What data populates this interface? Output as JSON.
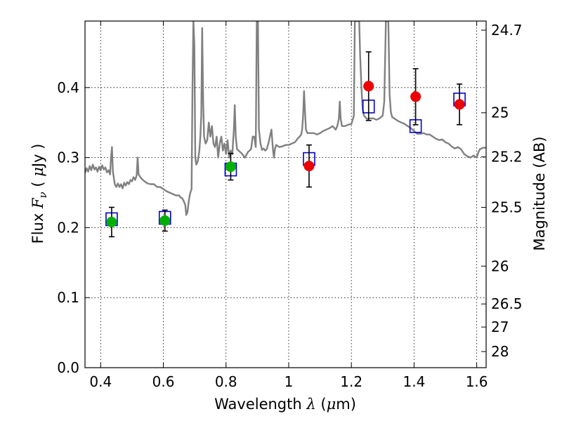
{
  "chart_data": {
    "type": "scatter",
    "xlabel": "Wavelength",
    "xlabel_symbol": "λ",
    "xlabel_unit_open": "(",
    "xlabel_unit_mu": "μ",
    "xlabel_unit_rest": "m)",
    "ylabel": "Flux",
    "ylabel_symbol": "F",
    "ylabel_subscript": "ν",
    "ylabel_unit_open": "(",
    "ylabel_unit_mu": "μ",
    "ylabel_unit_rest": "Jy )",
    "y2label": "Magnitude (AB)",
    "xlim": [
      0.35,
      1.63
    ],
    "ylim": [
      0.0,
      0.495
    ],
    "grid": true,
    "x_ticks": [
      {
        "value": 0.4,
        "label": "0.4"
      },
      {
        "value": 0.6,
        "label": "0.6"
      },
      {
        "value": 0.8,
        "label": "0.8"
      },
      {
        "value": 1.0,
        "label": "1"
      },
      {
        "value": 1.2,
        "label": "1.2"
      },
      {
        "value": 1.4,
        "label": "1.4"
      },
      {
        "value": 1.6,
        "label": "1.6"
      }
    ],
    "y_ticks": [
      {
        "value": 0.0,
        "label": "0.0"
      },
      {
        "value": 0.1,
        "label": "0.1"
      },
      {
        "value": 0.2,
        "label": "0.2"
      },
      {
        "value": 0.3,
        "label": "0.3"
      },
      {
        "value": 0.4,
        "label": "0.4"
      }
    ],
    "y2_ticks": [
      {
        "flux": 0.482,
        "label": "24.7"
      },
      {
        "flux": 0.364,
        "label": "25"
      },
      {
        "flux": 0.301,
        "label": "25.2"
      },
      {
        "flux": 0.229,
        "label": "25.5"
      },
      {
        "flux": 0.145,
        "label": "26"
      },
      {
        "flux": 0.091,
        "label": "26.5"
      },
      {
        "flux": 0.058,
        "label": "27"
      },
      {
        "flux": 0.023,
        "label": "28"
      }
    ],
    "series": [
      {
        "marker": "square-open",
        "color": "#0000cc",
        "points": [
          {
            "x": 0.435,
            "y": 0.212
          },
          {
            "x": 0.605,
            "y": 0.214
          },
          {
            "x": 0.815,
            "y": 0.283
          },
          {
            "x": 1.065,
            "y": 0.298
          },
          {
            "x": 1.255,
            "y": 0.373
          },
          {
            "x": 1.405,
            "y": 0.345
          },
          {
            "x": 1.545,
            "y": 0.383
          }
        ]
      },
      {
        "marker": "circle",
        "color": "#00b000",
        "points": [
          {
            "x": 0.435,
            "y": 0.208,
            "err": 0.021
          },
          {
            "x": 0.605,
            "y": 0.21,
            "err": 0.015
          },
          {
            "x": 0.815,
            "y": 0.287,
            "err": 0.019
          }
        ]
      },
      {
        "marker": "circle",
        "color": "#ee0000",
        "points": [
          {
            "x": 1.065,
            "y": 0.288,
            "err": 0.03
          },
          {
            "x": 1.255,
            "y": 0.402,
            "err": 0.049
          },
          {
            "x": 1.405,
            "y": 0.387,
            "err": 0.04
          },
          {
            "x": 1.545,
            "y": 0.376,
            "err": 0.029
          }
        ]
      },
      {
        "type": "line",
        "color": "#808080",
        "points": [
          [
            0.35,
            0.278
          ],
          [
            0.355,
            0.285
          ],
          [
            0.36,
            0.28
          ],
          [
            0.365,
            0.288
          ],
          [
            0.37,
            0.282
          ],
          [
            0.375,
            0.29
          ],
          [
            0.38,
            0.283
          ],
          [
            0.385,
            0.286
          ],
          [
            0.39,
            0.28
          ],
          [
            0.395,
            0.287
          ],
          [
            0.4,
            0.282
          ],
          [
            0.405,
            0.289
          ],
          [
            0.41,
            0.283
          ],
          [
            0.415,
            0.286
          ],
          [
            0.42,
            0.279
          ],
          [
            0.425,
            0.282
          ],
          [
            0.43,
            0.276
          ],
          [
            0.433,
            0.3
          ],
          [
            0.436,
            0.315
          ],
          [
            0.439,
            0.28
          ],
          [
            0.445,
            0.262
          ],
          [
            0.45,
            0.258
          ],
          [
            0.455,
            0.263
          ],
          [
            0.46,
            0.258
          ],
          [
            0.465,
            0.262
          ],
          [
            0.47,
            0.256
          ],
          [
            0.475,
            0.264
          ],
          [
            0.48,
            0.26
          ],
          [
            0.485,
            0.265
          ],
          [
            0.49,
            0.262
          ],
          [
            0.495,
            0.268
          ],
          [
            0.5,
            0.266
          ],
          [
            0.505,
            0.272
          ],
          [
            0.51,
            0.268
          ],
          [
            0.515,
            0.275
          ],
          [
            0.518,
            0.3
          ],
          [
            0.521,
            0.276
          ],
          [
            0.53,
            0.27
          ],
          [
            0.54,
            0.266
          ],
          [
            0.55,
            0.263
          ],
          [
            0.56,
            0.262
          ],
          [
            0.57,
            0.262
          ],
          [
            0.58,
            0.258
          ],
          [
            0.59,
            0.258
          ],
          [
            0.6,
            0.255
          ],
          [
            0.61,
            0.252
          ],
          [
            0.62,
            0.25
          ],
          [
            0.63,
            0.248
          ],
          [
            0.64,
            0.246
          ],
          [
            0.65,
            0.246
          ],
          [
            0.655,
            0.243
          ],
          [
            0.66,
            0.242
          ],
          [
            0.665,
            0.238
          ],
          [
            0.67,
            0.232
          ],
          [
            0.673,
            0.218
          ],
          [
            0.677,
            0.222
          ],
          [
            0.681,
            0.238
          ],
          [
            0.685,
            0.248
          ],
          [
            0.69,
            0.255
          ],
          [
            0.693,
            0.4
          ],
          [
            0.696,
            0.495
          ],
          [
            0.699,
            0.46
          ],
          [
            0.702,
            0.3
          ],
          [
            0.705,
            0.29
          ],
          [
            0.71,
            0.295
          ],
          [
            0.715,
            0.31
          ],
          [
            0.718,
            0.33
          ],
          [
            0.721,
            0.36
          ],
          [
            0.724,
            0.485
          ],
          [
            0.727,
            0.38
          ],
          [
            0.73,
            0.33
          ],
          [
            0.735,
            0.32
          ],
          [
            0.74,
            0.325
          ],
          [
            0.745,
            0.35
          ],
          [
            0.75,
            0.33
          ],
          [
            0.755,
            0.345
          ],
          [
            0.76,
            0.32
          ],
          [
            0.765,
            0.315
          ],
          [
            0.77,
            0.33
          ],
          [
            0.775,
            0.3
          ],
          [
            0.78,
            0.32
          ],
          [
            0.785,
            0.33
          ],
          [
            0.79,
            0.31
          ],
          [
            0.795,
            0.32
          ],
          [
            0.8,
            0.305
          ],
          [
            0.805,
            0.325
          ],
          [
            0.81,
            0.3
          ],
          [
            0.815,
            0.31
          ],
          [
            0.82,
            0.305
          ],
          [
            0.825,
            0.34
          ],
          [
            0.828,
            0.375
          ],
          [
            0.831,
            0.33
          ],
          [
            0.835,
            0.312
          ],
          [
            0.84,
            0.31
          ],
          [
            0.85,
            0.306
          ],
          [
            0.86,
            0.3
          ],
          [
            0.87,
            0.308
          ],
          [
            0.88,
            0.312
          ],
          [
            0.885,
            0.33
          ],
          [
            0.89,
            0.33
          ],
          [
            0.895,
            0.315
          ],
          [
            0.898,
            0.495
          ],
          [
            0.902,
            0.495
          ],
          [
            0.905,
            0.34
          ],
          [
            0.91,
            0.32
          ],
          [
            0.915,
            0.311
          ],
          [
            0.92,
            0.313
          ],
          [
            0.925,
            0.31
          ],
          [
            0.93,
            0.312
          ],
          [
            0.935,
            0.32
          ],
          [
            0.94,
            0.33
          ],
          [
            0.945,
            0.34
          ],
          [
            0.95,
            0.31
          ],
          [
            0.953,
            0.3
          ],
          [
            0.956,
            0.312
          ],
          [
            0.96,
            0.318
          ],
          [
            0.97,
            0.315
          ],
          [
            0.98,
            0.316
          ],
          [
            0.99,
            0.318
          ],
          [
            1.0,
            0.318
          ],
          [
            1.01,
            0.32
          ],
          [
            1.02,
            0.322
          ],
          [
            1.025,
            0.325
          ],
          [
            1.03,
            0.328
          ],
          [
            1.035,
            0.33
          ],
          [
            1.04,
            0.333
          ],
          [
            1.043,
            0.34
          ],
          [
            1.046,
            0.36
          ],
          [
            1.049,
            0.395
          ],
          [
            1.052,
            0.365
          ],
          [
            1.055,
            0.34
          ],
          [
            1.06,
            0.335
          ],
          [
            1.07,
            0.335
          ],
          [
            1.08,
            0.335
          ],
          [
            1.09,
            0.333
          ],
          [
            1.1,
            0.335
          ],
          [
            1.11,
            0.338
          ],
          [
            1.12,
            0.34
          ],
          [
            1.13,
            0.342
          ],
          [
            1.14,
            0.345
          ],
          [
            1.15,
            0.34
          ],
          [
            1.155,
            0.345
          ],
          [
            1.16,
            0.355
          ],
          [
            1.163,
            0.38
          ],
          [
            1.166,
            0.355
          ],
          [
            1.17,
            0.345
          ],
          [
            1.18,
            0.345
          ],
          [
            1.19,
            0.347
          ],
          [
            1.2,
            0.348
          ],
          [
            1.205,
            0.355
          ],
          [
            1.208,
            0.36
          ],
          [
            1.211,
            0.495
          ],
          [
            1.225,
            0.495
          ],
          [
            1.228,
            0.445
          ],
          [
            1.232,
            0.4
          ],
          [
            1.236,
            0.37
          ],
          [
            1.24,
            0.36
          ],
          [
            1.25,
            0.355
          ],
          [
            1.26,
            0.356
          ],
          [
            1.27,
            0.356
          ],
          [
            1.28,
            0.354
          ],
          [
            1.29,
            0.356
          ],
          [
            1.3,
            0.36
          ],
          [
            1.305,
            0.38
          ],
          [
            1.31,
            0.495
          ],
          [
            1.318,
            0.495
          ],
          [
            1.322,
            0.39
          ],
          [
            1.326,
            0.365
          ],
          [
            1.33,
            0.358
          ],
          [
            1.34,
            0.355
          ],
          [
            1.35,
            0.352
          ],
          [
            1.36,
            0.35
          ],
          [
            1.37,
            0.348
          ],
          [
            1.38,
            0.345
          ],
          [
            1.39,
            0.342
          ],
          [
            1.4,
            0.338
          ],
          [
            1.41,
            0.334
          ],
          [
            1.42,
            0.334
          ],
          [
            1.43,
            0.335
          ],
          [
            1.44,
            0.333
          ],
          [
            1.45,
            0.333
          ],
          [
            1.46,
            0.33
          ],
          [
            1.47,
            0.327
          ],
          [
            1.48,
            0.325
          ],
          [
            1.49,
            0.326
          ],
          [
            1.5,
            0.322
          ],
          [
            1.51,
            0.32
          ],
          [
            1.52,
            0.316
          ],
          [
            1.53,
            0.313
          ],
          [
            1.54,
            0.315
          ],
          [
            1.55,
            0.312
          ],
          [
            1.56,
            0.305
          ],
          [
            1.57,
            0.302
          ],
          [
            1.58,
            0.3
          ],
          [
            1.59,
            0.303
          ],
          [
            1.6,
            0.3
          ],
          [
            1.605,
            0.307
          ],
          [
            1.61,
            0.312
          ],
          [
            1.62,
            0.314
          ],
          [
            1.63,
            0.314
          ]
        ]
      }
    ]
  }
}
